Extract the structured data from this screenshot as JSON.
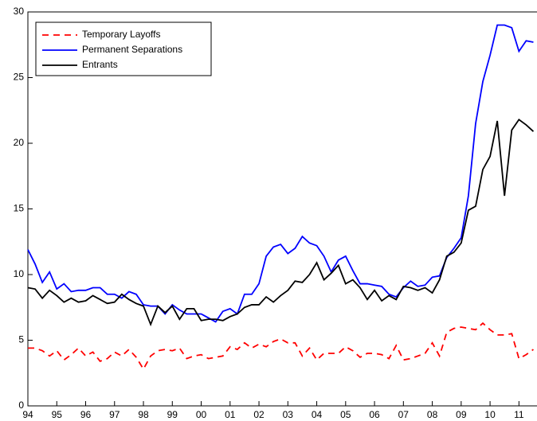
{
  "chart_data": {
    "type": "line",
    "categories": [
      "94",
      null,
      null,
      null,
      "95",
      null,
      null,
      null,
      "96",
      null,
      null,
      null,
      "97",
      null,
      null,
      null,
      "98",
      null,
      null,
      null,
      "99",
      null,
      null,
      null,
      "00",
      null,
      null,
      null,
      "01",
      null,
      null,
      null,
      "02",
      null,
      null,
      null,
      "03",
      null,
      null,
      null,
      "04",
      null,
      null,
      null,
      "05",
      null,
      null,
      null,
      "06",
      null,
      null,
      null,
      "07",
      null,
      null,
      null,
      "08",
      null,
      null,
      null,
      "09",
      null,
      null,
      null,
      "10",
      null,
      null,
      null,
      "11",
      null,
      null
    ],
    "series": [
      {
        "name": "Temporary Layoffs",
        "color": "#ff0000",
        "linestyle": "dashed",
        "values": [
          4.4,
          4.4,
          4.2,
          3.8,
          4.2,
          3.5,
          3.9,
          4.4,
          3.8,
          4.1,
          3.4,
          3.6,
          4.1,
          3.8,
          4.3,
          3.7,
          2.8,
          3.8,
          4.2,
          4.3,
          4.2,
          4.4,
          3.6,
          3.8,
          3.9,
          3.6,
          3.7,
          3.8,
          4.5,
          4.3,
          4.8,
          4.4,
          4.7,
          4.5,
          4.9,
          5.1,
          4.8,
          4.8,
          3.8,
          4.4,
          3.5,
          4.0,
          4.0,
          4.0,
          4.5,
          4.2,
          3.7,
          4.0,
          4.0,
          3.9,
          3.6,
          4.6,
          3.5,
          3.6,
          3.8,
          4.0,
          4.8,
          3.8,
          5.6,
          5.9,
          6.0,
          5.9,
          5.8,
          6.3,
          5.8,
          5.4,
          5.4,
          5.5,
          3.6,
          3.9,
          4.3
        ]
      },
      {
        "name": "Permanent Separations",
        "color": "#0000ff",
        "linestyle": "solid",
        "values": [
          11.9,
          10.8,
          9.4,
          10.2,
          8.9,
          9.3,
          8.7,
          8.8,
          8.8,
          9.0,
          9.0,
          8.5,
          8.5,
          8.2,
          8.7,
          8.5,
          7.7,
          7.6,
          7.6,
          7.0,
          7.7,
          7.3,
          7.0,
          7.0,
          7.0,
          6.7,
          6.4,
          7.2,
          7.4,
          7.0,
          8.5,
          8.5,
          9.3,
          11.4,
          12.1,
          12.3,
          11.6,
          12.0,
          12.9,
          12.4,
          12.2,
          11.4,
          10.2,
          11.1,
          11.4,
          10.3,
          9.3,
          9.3,
          9.2,
          9.1,
          8.5,
          8.3,
          9.0,
          9.5,
          9.1,
          9.2,
          9.8,
          9.9,
          11.3,
          12.0,
          12.8,
          16.0,
          21.5,
          24.7,
          26.7,
          29.0,
          29.0,
          28.8,
          27.0,
          27.8,
          27.7
        ]
      },
      {
        "name": "Entrants",
        "color": "#000000",
        "linestyle": "solid",
        "values": [
          9.0,
          8.9,
          8.2,
          8.8,
          8.4,
          7.9,
          8.2,
          7.9,
          8.0,
          8.4,
          8.1,
          7.8,
          7.9,
          8.5,
          8.1,
          7.8,
          7.6,
          6.2,
          7.6,
          7.1,
          7.6,
          6.6,
          7.4,
          7.4,
          6.5,
          6.6,
          6.6,
          6.5,
          6.8,
          7.0,
          7.5,
          7.7,
          7.7,
          8.3,
          7.9,
          8.4,
          8.8,
          9.5,
          9.4,
          10.0,
          10.9,
          9.6,
          10.1,
          10.7,
          9.3,
          9.6,
          9.0,
          8.1,
          8.8,
          8.0,
          8.4,
          8.1,
          9.1,
          9.0,
          8.8,
          9.0,
          8.6,
          9.6,
          11.4,
          11.7,
          12.4,
          14.9,
          15.2,
          18.0,
          19.0,
          21.7,
          16.0,
          21.0,
          21.8,
          21.4,
          20.9
        ]
      }
    ],
    "ylim": [
      0,
      30
    ],
    "yticks": [
      0,
      5,
      10,
      15,
      20,
      25,
      30
    ],
    "grid": false,
    "legend": "upper left"
  }
}
